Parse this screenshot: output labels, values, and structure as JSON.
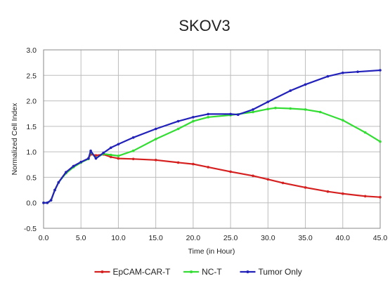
{
  "chart_data": {
    "type": "line",
    "title": "SKOV3",
    "xlabel": "Time (in Hour)",
    "ylabel": "Normalized Cell Index",
    "xlim": [
      0,
      45
    ],
    "ylim": [
      -0.5,
      3.0
    ],
    "xticks": [
      0.0,
      5.0,
      10.0,
      15.0,
      20.0,
      25.0,
      30.0,
      35.0,
      40.0,
      45.0
    ],
    "xtick_labels": [
      "0.0",
      "5.0",
      "10.0",
      "15.0",
      "20.0",
      "25.0",
      "30.0",
      "35.0",
      "40.0",
      "45.0"
    ],
    "yticks": [
      -0.5,
      0.0,
      0.5,
      1.0,
      1.5,
      2.0,
      2.5,
      3.0
    ],
    "ytick_labels": [
      "-0.5",
      "0.0",
      "0.5",
      "1.0",
      "1.5",
      "2.0",
      "2.5",
      "3.0"
    ],
    "grid": true,
    "legend_position": "bottom",
    "series": [
      {
        "name": "EpCAM-CAR-T",
        "color": "#d62020",
        "x": [
          0,
          0.5,
          1,
          1.5,
          2,
          3,
          4,
          5,
          6,
          6.3,
          7,
          8,
          9,
          10,
          12,
          15,
          18,
          20,
          22,
          25,
          28,
          30,
          32,
          35,
          38,
          40,
          43,
          45
        ],
        "y": [
          0,
          0,
          0.05,
          0.25,
          0.4,
          0.6,
          0.72,
          0.8,
          0.87,
          0.95,
          0.93,
          0.95,
          0.9,
          0.87,
          0.86,
          0.84,
          0.79,
          0.76,
          0.7,
          0.61,
          0.53,
          0.46,
          0.39,
          0.3,
          0.22,
          0.18,
          0.13,
          0.11
        ]
      },
      {
        "name": "NC-T",
        "color": "#33dd33",
        "x": [
          0,
          0.5,
          1,
          1.5,
          2,
          3,
          4,
          5,
          6,
          6.3,
          7,
          8,
          9,
          10,
          12,
          15,
          18,
          20,
          22,
          25,
          28,
          30,
          31,
          33,
          35,
          37,
          40,
          43,
          45
        ],
        "y": [
          0,
          0,
          0.05,
          0.25,
          0.4,
          0.58,
          0.7,
          0.79,
          0.86,
          1.0,
          0.88,
          0.96,
          0.94,
          0.92,
          1.02,
          1.25,
          1.45,
          1.6,
          1.68,
          1.72,
          1.78,
          1.84,
          1.86,
          1.85,
          1.83,
          1.78,
          1.62,
          1.38,
          1.2
        ]
      },
      {
        "name": "Tumor Only",
        "color": "#2222bb",
        "x": [
          0,
          0.5,
          1,
          1.5,
          2,
          3,
          4,
          5,
          6,
          6.3,
          7,
          8,
          9,
          10,
          12,
          15,
          18,
          20,
          22,
          25,
          26,
          28,
          30,
          33,
          35,
          38,
          40,
          42,
          45
        ],
        "y": [
          0,
          0,
          0.05,
          0.25,
          0.4,
          0.6,
          0.72,
          0.8,
          0.87,
          1.02,
          0.87,
          0.98,
          1.08,
          1.15,
          1.28,
          1.45,
          1.6,
          1.68,
          1.74,
          1.74,
          1.73,
          1.83,
          1.98,
          2.2,
          2.32,
          2.48,
          2.55,
          2.57,
          2.6
        ]
      }
    ]
  }
}
